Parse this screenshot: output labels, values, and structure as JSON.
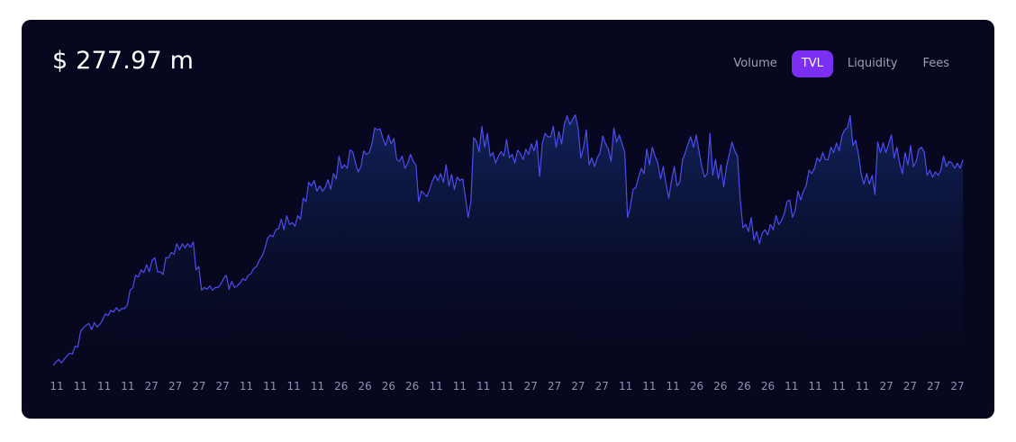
{
  "header": {
    "value": "$ 277.97 m"
  },
  "tabs": [
    {
      "label": "Volume",
      "active": false
    },
    {
      "label": "TVL",
      "active": true
    },
    {
      "label": "Liquidity",
      "active": false
    },
    {
      "label": "Fees",
      "active": false
    }
  ],
  "colors": {
    "background": "#07081f",
    "line": "#4d4cf0",
    "area_top": "#12245e",
    "tab_active": "#7b2ff2"
  },
  "chart_data": {
    "type": "area",
    "title": "",
    "xlabel": "",
    "ylabel": "",
    "x_tick_labels": [
      "11",
      "11",
      "11",
      "11",
      "27",
      "27",
      "27",
      "27",
      "11",
      "11",
      "11",
      "11",
      "26",
      "26",
      "26",
      "26",
      "11",
      "11",
      "11",
      "11",
      "27",
      "27",
      "27",
      "27",
      "11",
      "11",
      "11",
      "26",
      "26",
      "26",
      "26",
      "11",
      "11",
      "11",
      "11",
      "27",
      "27",
      "27",
      "27"
    ],
    "ylim": [
      0,
      300
    ],
    "grid": false,
    "legend": "none",
    "series": [
      {
        "values": [
          1,
          5,
          8,
          4,
          8,
          12,
          15,
          14,
          23,
          22,
          40,
          44,
          47,
          49,
          42,
          50,
          45,
          48,
          53,
          60,
          58,
          64,
          62,
          67,
          63,
          66,
          66,
          70,
          87,
          90,
          104,
          102,
          110,
          107,
          116,
          108,
          121,
          124,
          108,
          108,
          105,
          124,
          124,
          130,
          128,
          140,
          133,
          140,
          135,
          140,
          136,
          142,
          110,
          114,
          87,
          90,
          88,
          92,
          87,
          90,
          90,
          94,
          100,
          104,
          88,
          97,
          90,
          92,
          95,
          100,
          98,
          104,
          106,
          112,
          114,
          121,
          126,
          134,
          146,
          150,
          148,
          156,
          157,
          168,
          156,
          172,
          162,
          164,
          160,
          172,
          168,
          192,
          188,
          210,
          206,
          212,
          200,
          206,
          200,
          204,
          213,
          202,
          220,
          214,
          240,
          226,
          230,
          226,
          247,
          245,
          232,
          222,
          228,
          246,
          242,
          244,
          254,
          272,
          270,
          271,
          260,
          252,
          264,
          254,
          260,
          236,
          234,
          240,
          226,
          232,
          242,
          234,
          230,
          188,
          200,
          197,
          194,
          202,
          212,
          218,
          212,
          220,
          210,
          230,
          206,
          219,
          202,
          216,
          212,
          214,
          193,
          170,
          188,
          261,
          257,
          245,
          274,
          250,
          266,
          240,
          244,
          232,
          240,
          245,
          240,
          259,
          238,
          242,
          232,
          247,
          243,
          236,
          248,
          242,
          254,
          246,
          258,
          217,
          255,
          266,
          262,
          262,
          274,
          250,
          268,
          254,
          276,
          286,
          276,
          282,
          287,
          272,
          238,
          250,
          270,
          230,
          238,
          228,
          238,
          244,
          263,
          254,
          248,
          234,
          272,
          256,
          264,
          254,
          244,
          170,
          182,
          202,
          204,
          216,
          226,
          220,
          248,
          230,
          250,
          240,
          232,
          214,
          228,
          208,
          192,
          212,
          228,
          206,
          210,
          236,
          244,
          254,
          262,
          250,
          264,
          246,
          228,
          216,
          220,
          266,
          218,
          236,
          214,
          230,
          205,
          228,
          242,
          256,
          246,
          240,
          190,
          158,
          162,
          154,
          170,
          144,
          154,
          140,
          152,
          156,
          150,
          162,
          156,
          172,
          162,
          166,
          174,
          188,
          190,
          170,
          178,
          200,
          190,
          200,
          206,
          224,
          220,
          226,
          238,
          234,
          244,
          236,
          236,
          250,
          244,
          255,
          246,
          263,
          270,
          272,
          286,
          252,
          258,
          242,
          220,
          208,
          220,
          208,
          218,
          196,
          256,
          244,
          255,
          244,
          254,
          264,
          238,
          250,
          232,
          220,
          244,
          230,
          252,
          228,
          234,
          248,
          250,
          244,
          218,
          224,
          216,
          222,
          218,
          224,
          240,
          228,
          234,
          232,
          226,
          232,
          226,
          236
        ]
      }
    ]
  }
}
